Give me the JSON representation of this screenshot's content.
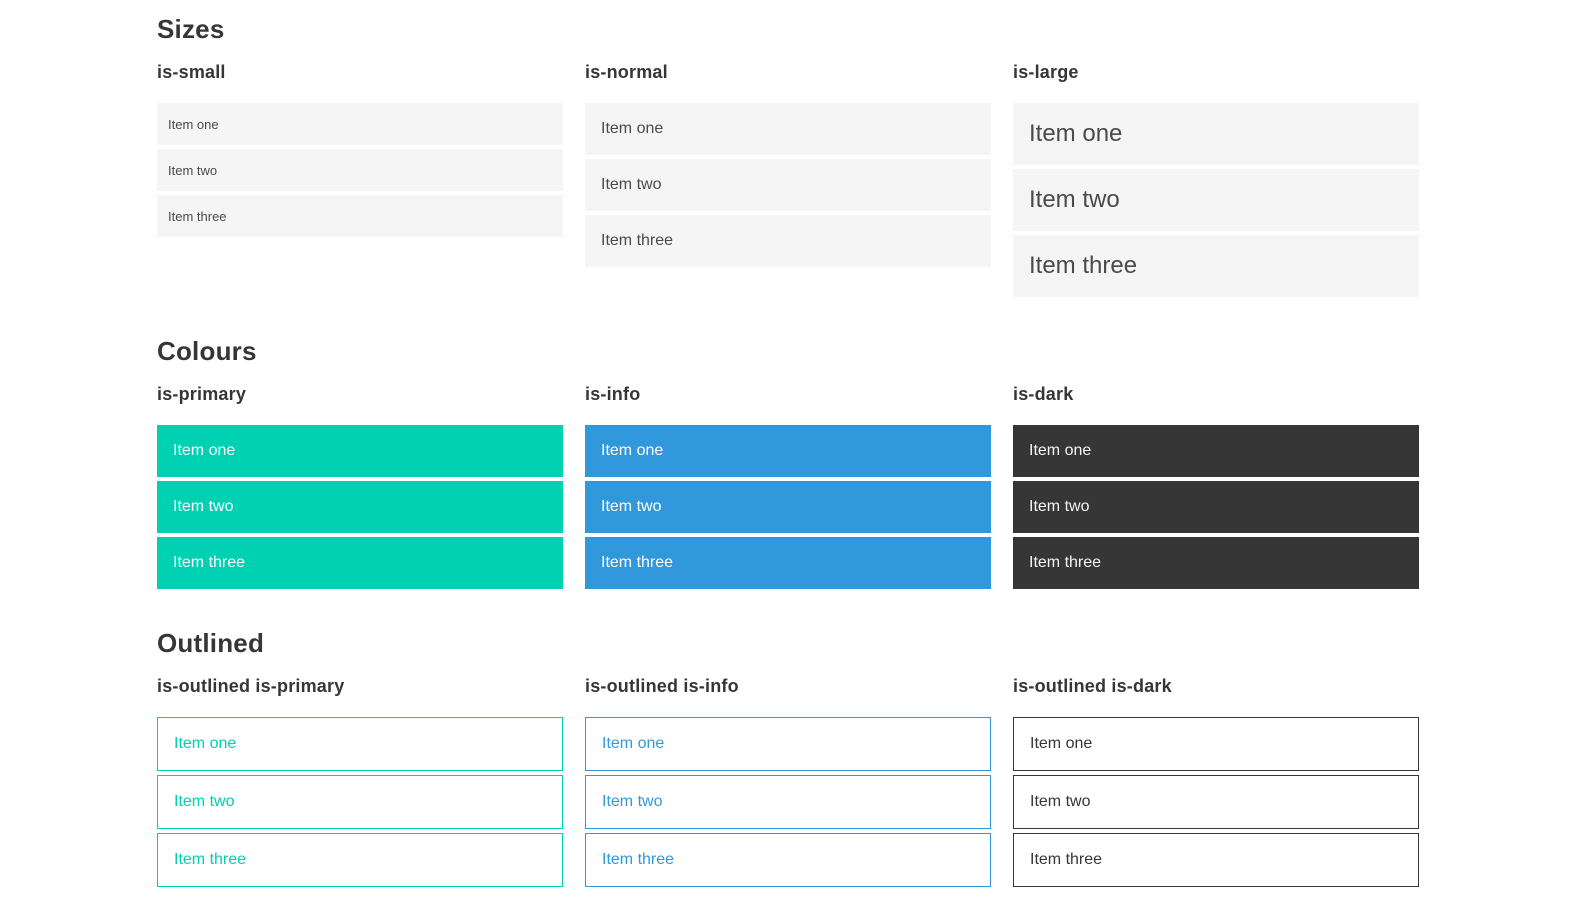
{
  "colors": {
    "page_bg": "#ffffff",
    "heading_text": "#363636",
    "item_bg": "#f5f5f5",
    "item_text": "#4a4a4a",
    "primary": "#00d1b2",
    "info": "#3298dc",
    "dark": "#363636",
    "light_text": "#ffffff",
    "dark_item_text": "#f5f5f5"
  },
  "sections": [
    {
      "title": "Sizes",
      "groups": [
        {
          "label": "is-small",
          "variant": "small",
          "items": [
            "Item one",
            "Item two",
            "Item three"
          ]
        },
        {
          "label": "is-normal",
          "variant": "normal",
          "items": [
            "Item one",
            "Item two",
            "Item three"
          ]
        },
        {
          "label": "is-large",
          "variant": "large",
          "items": [
            "Item one",
            "Item two",
            "Item three"
          ]
        }
      ]
    },
    {
      "title": "Colours",
      "groups": [
        {
          "label": "is-primary",
          "variant": "primary",
          "items": [
            "Item one",
            "Item two",
            "Item three"
          ]
        },
        {
          "label": "is-info",
          "variant": "info",
          "items": [
            "Item one",
            "Item two",
            "Item three"
          ]
        },
        {
          "label": "is-dark",
          "variant": "dark",
          "items": [
            "Item one",
            "Item two",
            "Item three"
          ]
        }
      ]
    },
    {
      "title": "Outlined",
      "groups": [
        {
          "label": "is-outlined is-primary",
          "variant": "outlined-primary",
          "items": [
            "Item one",
            "Item two",
            "Item three"
          ]
        },
        {
          "label": "is-outlined is-info",
          "variant": "outlined-info",
          "items": [
            "Item one",
            "Item two",
            "Item three"
          ]
        },
        {
          "label": "is-outlined is-dark",
          "variant": "outlined-dark",
          "items": [
            "Item one",
            "Item two",
            "Item three"
          ]
        }
      ]
    }
  ]
}
